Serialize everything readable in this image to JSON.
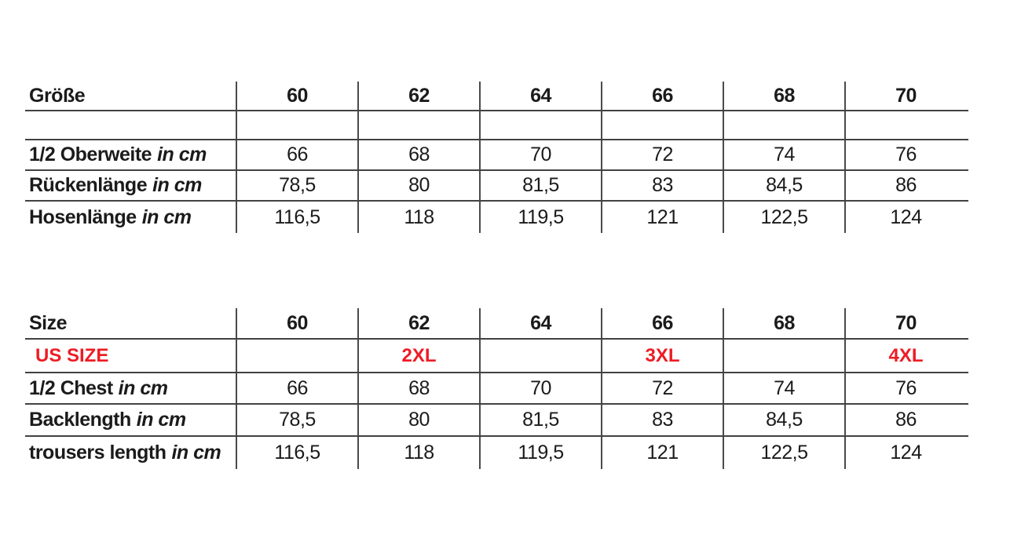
{
  "colors": {
    "text": "#1b1b1b",
    "accent_red": "#ed1c24",
    "grid_line": "#424242",
    "background": "#ffffff"
  },
  "table_de": {
    "header": {
      "label": "Größe",
      "sizes": [
        "60",
        "62",
        "64",
        "66",
        "68",
        "70"
      ]
    },
    "rows": [
      {
        "label": "1/2 Oberweite",
        "unit": "in cm",
        "values": [
          "66",
          "68",
          "70",
          "72",
          "74",
          "76"
        ]
      },
      {
        "label": "Rückenlänge",
        "unit": "in cm",
        "values": [
          "78,5",
          "80",
          "81,5",
          "83",
          "84,5",
          "86"
        ]
      },
      {
        "label": "Hosenlänge",
        "unit": "in cm",
        "values": [
          "116,5",
          "118",
          "119,5",
          "121",
          "122,5",
          "124"
        ]
      }
    ]
  },
  "table_en": {
    "header": {
      "label": "Size",
      "sizes": [
        "60",
        "62",
        "64",
        "66",
        "68",
        "70"
      ]
    },
    "us_size": {
      "label": "US SIZE",
      "values": [
        "",
        "2XL",
        "",
        "3XL",
        "",
        "4XL"
      ]
    },
    "rows": [
      {
        "label": "1/2 Chest",
        "unit": "in cm",
        "values": [
          "66",
          "68",
          "70",
          "72",
          "74",
          "76"
        ]
      },
      {
        "label": "Backlength",
        "unit": "in cm",
        "values": [
          "78,5",
          "80",
          "81,5",
          "83",
          "84,5",
          "86"
        ]
      },
      {
        "label": "trousers length",
        "unit": "in cm",
        "values": [
          "116,5",
          "118",
          "119,5",
          "121",
          "122,5",
          "124"
        ]
      }
    ]
  }
}
